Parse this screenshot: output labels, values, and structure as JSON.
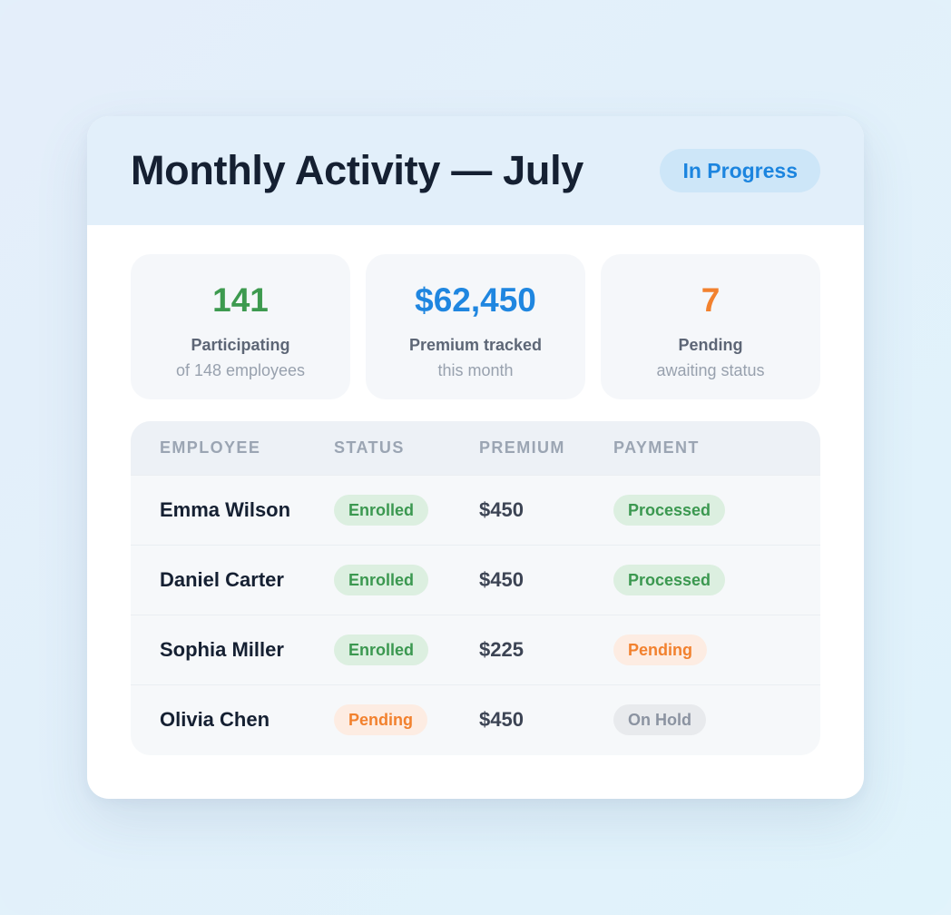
{
  "header": {
    "title": "Monthly Activity — July",
    "status": "In Progress"
  },
  "stats": [
    {
      "value": "141",
      "label": "Participating",
      "sub": "of 148 employees",
      "color": "#3d9a4f"
    },
    {
      "value": "$62,450",
      "label": "Premium tracked",
      "sub": "this month",
      "color": "#1f86e0"
    },
    {
      "value": "7",
      "label": "Pending",
      "sub": "awaiting status",
      "color": "#f2812e"
    }
  ],
  "table": {
    "columns": [
      "EMPLOYEE",
      "STATUS",
      "PREMIUM",
      "PAYMENT"
    ],
    "rows": [
      {
        "name": "Emma Wilson",
        "status": "Enrolled",
        "status_tone": "green",
        "premium": "$450",
        "payment": "Processed",
        "payment_tone": "green"
      },
      {
        "name": "Daniel Carter",
        "status": "Enrolled",
        "status_tone": "green",
        "premium": "$450",
        "payment": "Processed",
        "payment_tone": "green"
      },
      {
        "name": "Sophia Miller",
        "status": "Enrolled",
        "status_tone": "green",
        "premium": "$225",
        "payment": "Pending",
        "payment_tone": "orange"
      },
      {
        "name": "Olivia Chen",
        "status": "Pending",
        "status_tone": "orange",
        "premium": "$450",
        "payment": "On Hold",
        "payment_tone": "grey"
      }
    ]
  },
  "colors": {
    "green": "#3d9a4f",
    "blue": "#1f86e0",
    "orange": "#f2812e",
    "grey": "#8b93a1",
    "title": "#152032"
  }
}
